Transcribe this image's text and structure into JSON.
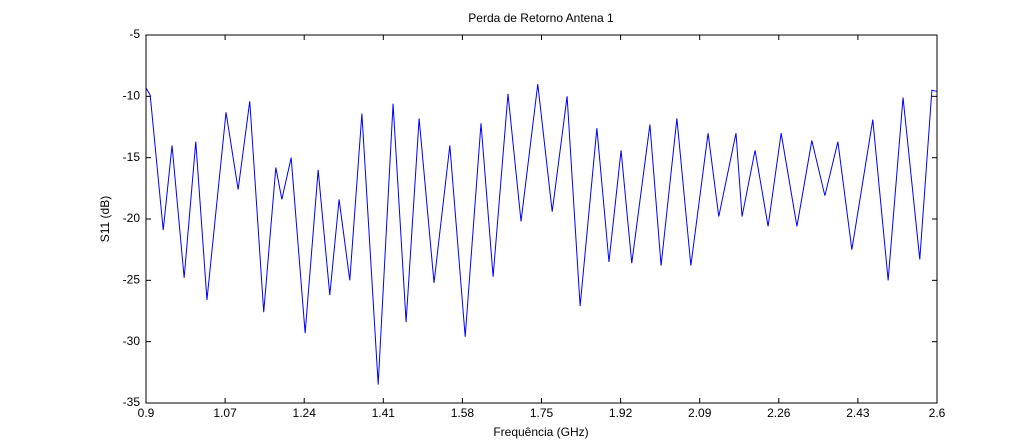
{
  "chart_data": {
    "type": "line",
    "title": "Perda de Retorno Antena 1",
    "x_label": "Frequência (GHz)",
    "y_label": "S11 (dB)",
    "x": [
      0.9,
      0.909,
      0.937,
      0.956,
      0.982,
      1.007,
      1.031,
      1.072,
      1.098,
      1.123,
      1.153,
      1.179,
      1.192,
      1.212,
      1.242,
      1.27,
      1.295,
      1.315,
      1.338,
      1.364,
      1.399,
      1.431,
      1.459,
      1.487,
      1.519,
      1.553,
      1.586,
      1.62,
      1.646,
      1.678,
      1.706,
      1.742,
      1.773,
      1.805,
      1.833,
      1.869,
      1.895,
      1.921,
      1.944,
      1.983,
      2.007,
      2.041,
      2.071,
      2.108,
      2.131,
      2.168,
      2.181,
      2.209,
      2.237,
      2.265,
      2.299,
      2.331,
      2.359,
      2.387,
      2.417,
      2.462,
      2.495,
      2.527,
      2.563,
      2.589,
      2.6
    ],
    "series": [
      {
        "name": "S11",
        "color": "#0000ff",
        "values": [
          -9.3,
          -9.9,
          -20.9,
          -14.0,
          -24.8,
          -13.7,
          -26.6,
          -11.3,
          -17.6,
          -10.4,
          -27.6,
          -15.8,
          -18.4,
          -15.0,
          -29.3,
          -16.0,
          -26.2,
          -18.4,
          -25.0,
          -11.4,
          -33.5,
          -10.6,
          -28.4,
          -11.8,
          -25.2,
          -14.0,
          -29.6,
          -12.2,
          -24.7,
          -9.8,
          -20.2,
          -9.0,
          -19.4,
          -10.0,
          -27.1,
          -12.6,
          -23.5,
          -14.4,
          -23.6,
          -12.3,
          -23.8,
          -11.8,
          -23.8,
          -13.0,
          -19.8,
          -13.0,
          -19.8,
          -14.4,
          -20.6,
          -13.0,
          -20.6,
          -13.6,
          -18.1,
          -13.7,
          -22.5,
          -11.9,
          -25.0,
          -10.1,
          -23.3,
          -9.5,
          -9.6
        ]
      }
    ],
    "xlim": [
      0.9,
      2.6
    ],
    "xticks": [
      0.9,
      1.07,
      1.24,
      1.41,
      1.58,
      1.75,
      1.92,
      2.09,
      2.26,
      2.43,
      2.6
    ],
    "ylim": [
      -35,
      -5
    ],
    "yticks": [
      -35,
      -30,
      -25,
      -20,
      -15,
      -10,
      -5
    ]
  }
}
